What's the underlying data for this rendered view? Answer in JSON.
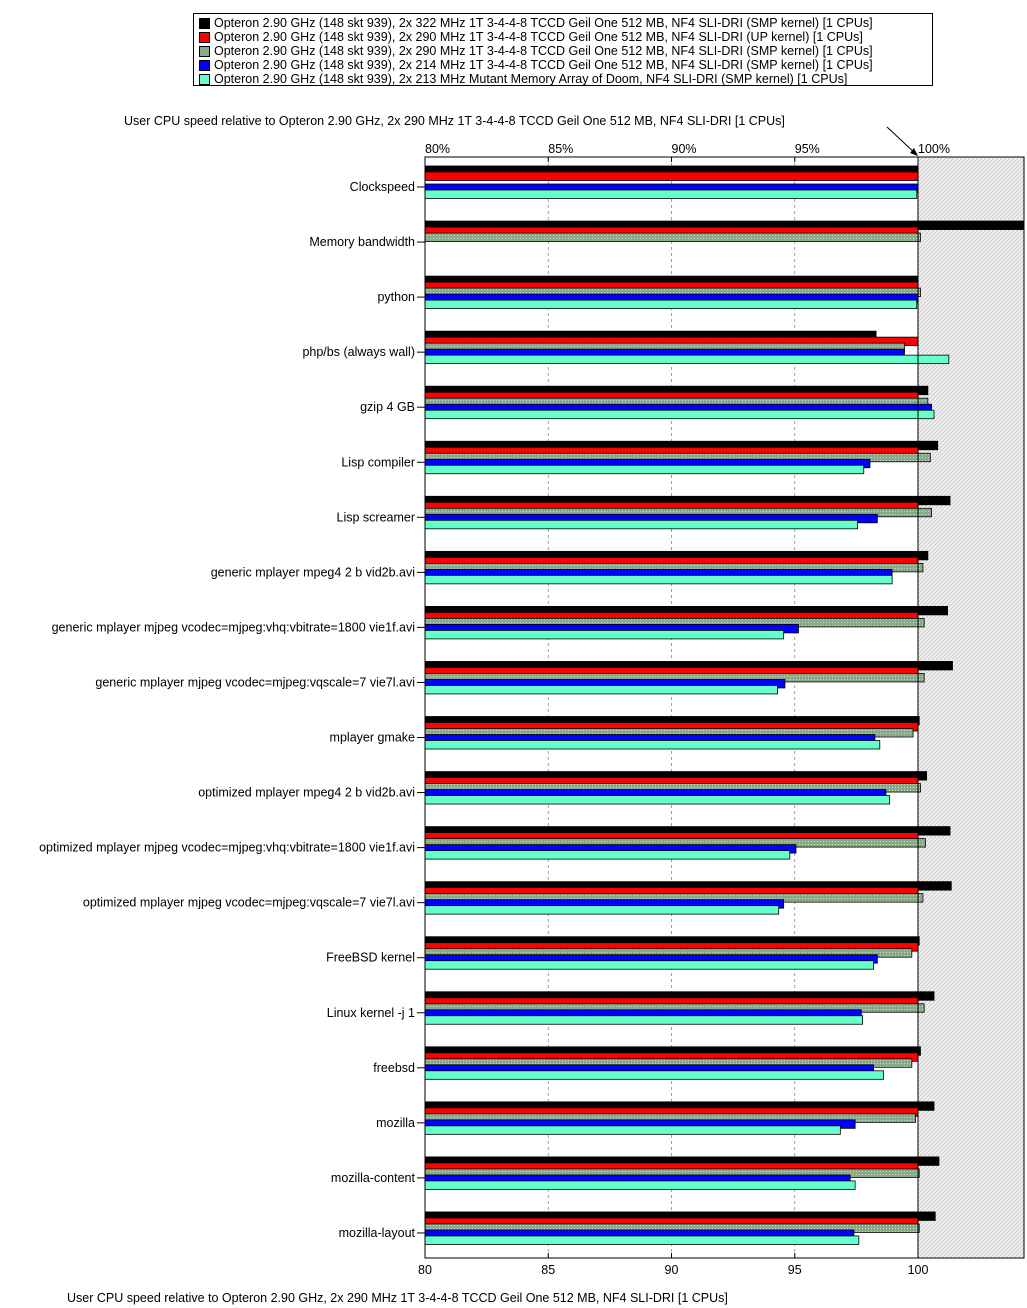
{
  "chart_data": {
    "type": "bar",
    "orientation": "horizontal",
    "title": "User CPU speed relative to Opteron 2.90 GHz, 2x 290 MHz 1T 3-4-4-8 TCCD Geil One 512 MB, NF4 SLI-DRI [1 CPUs]",
    "xlabel": "User CPU speed relative to Opteron 2.90 GHz, 2x 290 MHz 1T 3-4-4-8 TCCD Geil One 512 MB, NF4 SLI-DRI [1 CPUs]",
    "xlim": [
      80,
      104.3
    ],
    "reference_value": 100,
    "top_ticks": [
      "80%",
      "85%",
      "90%",
      "95%",
      "100%"
    ],
    "bottom_ticks": [
      "80",
      "85",
      "90",
      "95",
      "100"
    ],
    "tick_values": [
      80,
      85,
      90,
      95,
      100
    ],
    "grid": true,
    "legend_position": "top",
    "categories": [
      "Clockspeed",
      "Memory bandwidth",
      "python",
      "php/bs (always wall)",
      "gzip 4 GB",
      "Lisp compiler",
      "Lisp screamer",
      "generic mplayer mpeg4 2 b vid2b.avi",
      "generic mplayer mjpeg vcodec=mjpeg:vhq:vbitrate=1800 vie1f.avi",
      "generic mplayer mjpeg vcodec=mjpeg:vqscale=7 vie7l.avi",
      "mplayer gmake",
      "optimized mplayer mpeg4 2 b vid2b.avi",
      "optimized mplayer mjpeg vcodec=mjpeg:vhq:vbitrate=1800 vie1f.avi",
      "optimized mplayer mjpeg vcodec=mjpeg:vqscale=7 vie7l.avi",
      "FreeBSD kernel",
      "Linux kernel -j 1",
      "freebsd",
      "mozilla",
      "mozilla-content",
      "mozilla-layout"
    ],
    "series": [
      {
        "name": "Opteron 2.90 GHz (148 skt 939), 2x 322 MHz 1T 3-4-4-8 TCCD Geil One 512 MB, NF4 SLI-DRI (SMP kernel) [1 CPUs]",
        "color": "#000000",
        "values": [
          100,
          104.3,
          100,
          98.3,
          100.4,
          100.8,
          101.3,
          100.4,
          101.2,
          101.4,
          100.05,
          100.35,
          101.3,
          101.35,
          100.05,
          100.65,
          100.1,
          100.65,
          100.85,
          100.7
        ]
      },
      {
        "name": "Opteron 2.90 GHz (148 skt 939), 2x 290 MHz 1T 3-4-4-8 TCCD Geil One 512 MB, NF4 SLI-DRI (UP kernel) [1 CPUs]",
        "color": "#ff0000",
        "values": [
          100,
          100,
          100,
          100,
          100,
          100,
          100,
          100,
          100,
          100,
          100,
          100,
          100,
          100,
          100,
          100,
          100,
          100,
          100,
          100
        ]
      },
      {
        "name": "Opteron 2.90 GHz (148 skt 939), 2x 290 MHz 1T 3-4-4-8 TCCD Geil One 512 MB, NF4 SLI-DRI (SMP kernel) [1 CPUs]",
        "color": "#88aa88",
        "values": [
          null,
          100.1,
          100.1,
          99.45,
          100.4,
          100.5,
          100.55,
          100.2,
          100.25,
          100.25,
          99.8,
          100.1,
          100.3,
          100.2,
          99.75,
          100.25,
          99.75,
          99.9,
          100.05,
          100.05
        ]
      },
      {
        "name": "Opteron 2.90 GHz (148 skt 939), 2x 214 MHz 1T 3-4-4-8 TCCD Geil One 512 MB, NF4 SLI-DRI (SMP kernel) [1 CPUs]",
        "color": "#0000ff",
        "values": [
          100,
          null,
          100,
          99.45,
          100.55,
          98.05,
          98.35,
          98.95,
          95.15,
          94.6,
          98.25,
          98.7,
          95.05,
          94.55,
          98.35,
          97.7,
          98.2,
          97.45,
          97.25,
          97.4
        ]
      },
      {
        "name": "Opteron 2.90 GHz (148 skt 939), 2x 213 MHz Mutant Memory Array of Doom, NF4 SLI-DRI (SMP kernel) [1 CPUs]",
        "color": "#66ffcc",
        "values": [
          99.95,
          null,
          99.95,
          101.25,
          100.65,
          97.8,
          97.55,
          98.95,
          94.55,
          94.3,
          98.45,
          98.85,
          94.8,
          94.35,
          98.2,
          97.75,
          98.6,
          96.85,
          97.45,
          97.6
        ]
      }
    ]
  }
}
